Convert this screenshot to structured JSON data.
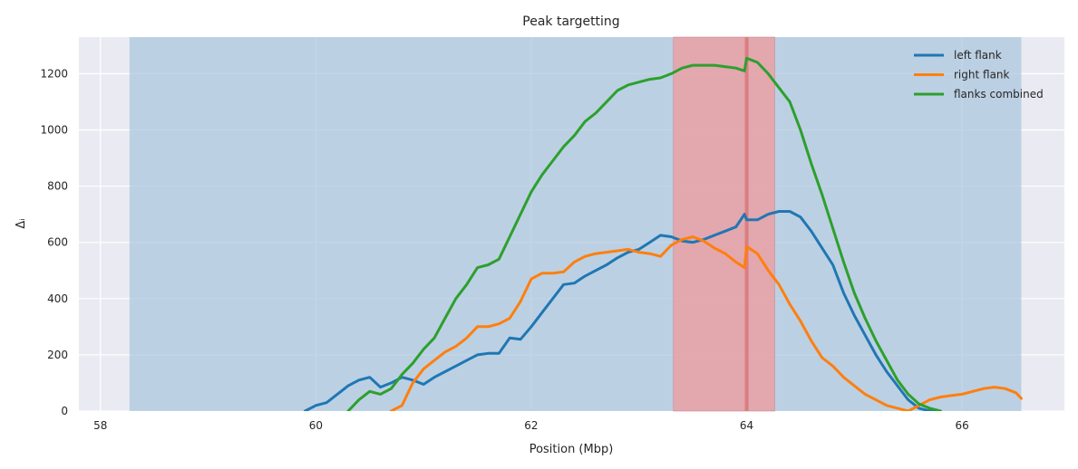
{
  "chart_data": {
    "type": "line",
    "title": "Peak targetting",
    "xlabel": "Position (Mbp)",
    "ylabel": "Δᵢ",
    "xlim": [
      57.8,
      66.95
    ],
    "ylim": [
      0,
      1330
    ],
    "x_ticks": [
      58,
      60,
      62,
      64,
      66
    ],
    "y_ticks": [
      0,
      200,
      400,
      600,
      800,
      1000,
      1200
    ],
    "grid": true,
    "legend_position": "top-right",
    "colors": {
      "background": "#eaeaf2",
      "grid": "#ffffff",
      "blue_span": "#a8c4dd",
      "red_span": "#eaa0a4",
      "peak_line": "#d9757a"
    },
    "spans": [
      {
        "kind": "region",
        "x0": 58.27,
        "x1": 66.55,
        "color": "#a8c4dd"
      },
      {
        "kind": "target",
        "x0": 63.32,
        "x1": 64.26,
        "color": "#eaa0a4"
      }
    ],
    "peak_line_x": 64.0,
    "series": [
      {
        "name": "left flank",
        "color": "#1f77b4",
        "x": [
          59.9,
          60.0,
          60.1,
          60.2,
          60.3,
          60.4,
          60.5,
          60.6,
          60.7,
          60.8,
          60.9,
          61.0,
          61.1,
          61.2,
          61.3,
          61.4,
          61.5,
          61.6,
          61.7,
          61.8,
          61.9,
          62.0,
          62.1,
          62.2,
          62.3,
          62.4,
          62.5,
          62.6,
          62.7,
          62.8,
          62.9,
          63.0,
          63.1,
          63.2,
          63.3,
          63.4,
          63.5,
          63.6,
          63.7,
          63.8,
          63.9,
          63.98,
          64.0,
          64.1,
          64.2,
          64.3,
          64.4,
          64.5,
          64.6,
          64.7,
          64.8,
          64.9,
          65.0,
          65.1,
          65.2,
          65.3,
          65.4,
          65.5,
          65.6,
          65.7,
          65.8
        ],
        "y": [
          0,
          20,
          30,
          60,
          90,
          110,
          120,
          85,
          100,
          120,
          110,
          95,
          120,
          140,
          160,
          180,
          200,
          205,
          205,
          260,
          255,
          300,
          350,
          400,
          450,
          455,
          480,
          500,
          520,
          545,
          565,
          575,
          600,
          625,
          620,
          605,
          600,
          610,
          625,
          640,
          655,
          700,
          680,
          680,
          700,
          710,
          710,
          690,
          640,
          580,
          520,
          420,
          340,
          270,
          200,
          140,
          90,
          40,
          10,
          0,
          0
        ]
      },
      {
        "name": "right flank",
        "color": "#ff7f0e",
        "x": [
          60.7,
          60.8,
          60.9,
          61.0,
          61.1,
          61.2,
          61.3,
          61.4,
          61.5,
          61.6,
          61.7,
          61.8,
          61.9,
          62.0,
          62.1,
          62.2,
          62.3,
          62.4,
          62.5,
          62.6,
          62.7,
          62.8,
          62.9,
          63.0,
          63.1,
          63.2,
          63.3,
          63.4,
          63.5,
          63.6,
          63.7,
          63.8,
          63.9,
          63.98,
          64.0,
          64.1,
          64.2,
          64.3,
          64.4,
          64.5,
          64.6,
          64.7,
          64.8,
          64.9,
          65.0,
          65.1,
          65.2,
          65.3,
          65.4,
          65.5,
          65.6,
          65.7,
          65.8,
          65.9,
          66.0,
          66.1,
          66.2,
          66.3,
          66.4,
          66.5,
          66.55
        ],
        "y": [
          0,
          20,
          100,
          150,
          180,
          210,
          230,
          260,
          300,
          300,
          310,
          330,
          390,
          470,
          490,
          490,
          495,
          530,
          550,
          560,
          565,
          570,
          575,
          565,
          560,
          550,
          590,
          610,
          620,
          605,
          580,
          560,
          530,
          510,
          585,
          560,
          500,
          450,
          380,
          320,
          250,
          190,
          160,
          120,
          90,
          60,
          40,
          20,
          10,
          0,
          20,
          40,
          50,
          55,
          60,
          70,
          80,
          85,
          80,
          65,
          45
        ]
      },
      {
        "name": "flanks combined",
        "color": "#2ca02c",
        "x": [
          60.3,
          60.4,
          60.5,
          60.6,
          60.7,
          60.8,
          60.9,
          61.0,
          61.1,
          61.2,
          61.3,
          61.4,
          61.5,
          61.6,
          61.7,
          61.8,
          61.9,
          62.0,
          62.1,
          62.2,
          62.3,
          62.4,
          62.5,
          62.6,
          62.7,
          62.8,
          62.9,
          63.0,
          63.1,
          63.2,
          63.3,
          63.4,
          63.5,
          63.6,
          63.7,
          63.8,
          63.9,
          63.98,
          64.0,
          64.1,
          64.2,
          64.3,
          64.4,
          64.5,
          64.6,
          64.7,
          64.8,
          64.9,
          65.0,
          65.1,
          65.2,
          65.3,
          65.4,
          65.5,
          65.6,
          65.7,
          65.8
        ],
        "y": [
          0,
          40,
          70,
          60,
          80,
          130,
          170,
          220,
          260,
          330,
          400,
          450,
          510,
          520,
          540,
          620,
          700,
          780,
          840,
          890,
          940,
          980,
          1030,
          1060,
          1100,
          1140,
          1160,
          1170,
          1180,
          1185,
          1200,
          1220,
          1230,
          1230,
          1230,
          1225,
          1220,
          1210,
          1255,
          1240,
          1200,
          1150,
          1100,
          1000,
          880,
          770,
          650,
          530,
          420,
          330,
          250,
          180,
          110,
          60,
          25,
          10,
          0
        ]
      }
    ]
  }
}
